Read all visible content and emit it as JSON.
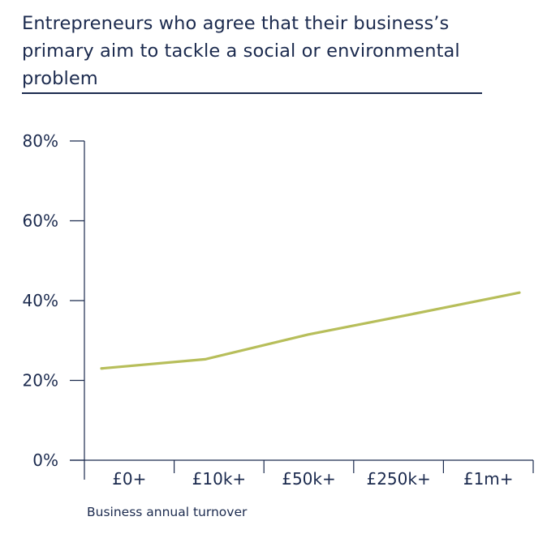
{
  "chart_data": {
    "type": "line",
    "title": "Entrepreneurs who agree that their business’s primary aim to tackle a social or environmental problem",
    "xlabel": "Business annual turnover",
    "ylabel": "",
    "categories": [
      "£0+",
      "£10k+",
      "£50k+",
      "£250k+",
      "£1m+"
    ],
    "series": [
      {
        "values": [
          23,
          25.3,
          31.5,
          36.7,
          42
        ]
      }
    ],
    "ylim": [
      0,
      80
    ],
    "yticks": [
      "0%",
      "20%",
      "40%",
      "60%",
      "80%"
    ],
    "ytick_values": [
      0,
      20,
      40,
      60,
      80
    ],
    "grid": false,
    "colors": {
      "line": "#b7be5a",
      "axis": "#1b2a4e",
      "text": "#1b2a4e"
    }
  }
}
